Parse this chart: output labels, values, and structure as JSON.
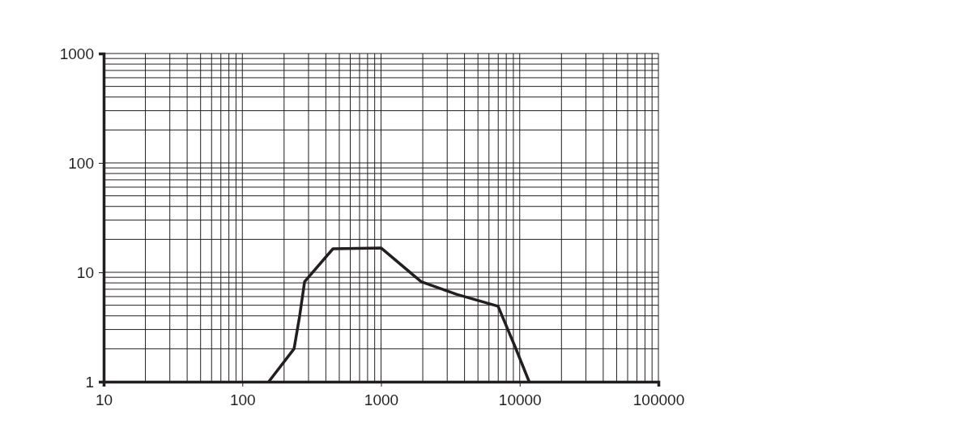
{
  "chart_data": {
    "type": "line",
    "log": "xy",
    "grid": true,
    "marker": "none",
    "line_style": "solid",
    "xlim": [
      10,
      100000
    ],
    "xticks": [
      10,
      100,
      1000,
      10000,
      100000
    ],
    "ylim": [
      1,
      1000
    ],
    "yticks": [
      1,
      10,
      100,
      1000
    ],
    "series": [
      {
        "color": "#231f20",
        "x": [
          155,
          236,
          259,
          281,
          450,
          1000,
          1950,
          3500,
          6980,
          9240,
          11700
        ],
        "values": [
          1,
          2,
          4,
          8.2,
          16.4,
          16.7,
          8.2,
          6.3,
          4.9,
          2.1,
          1
        ]
      }
    ]
  }
}
